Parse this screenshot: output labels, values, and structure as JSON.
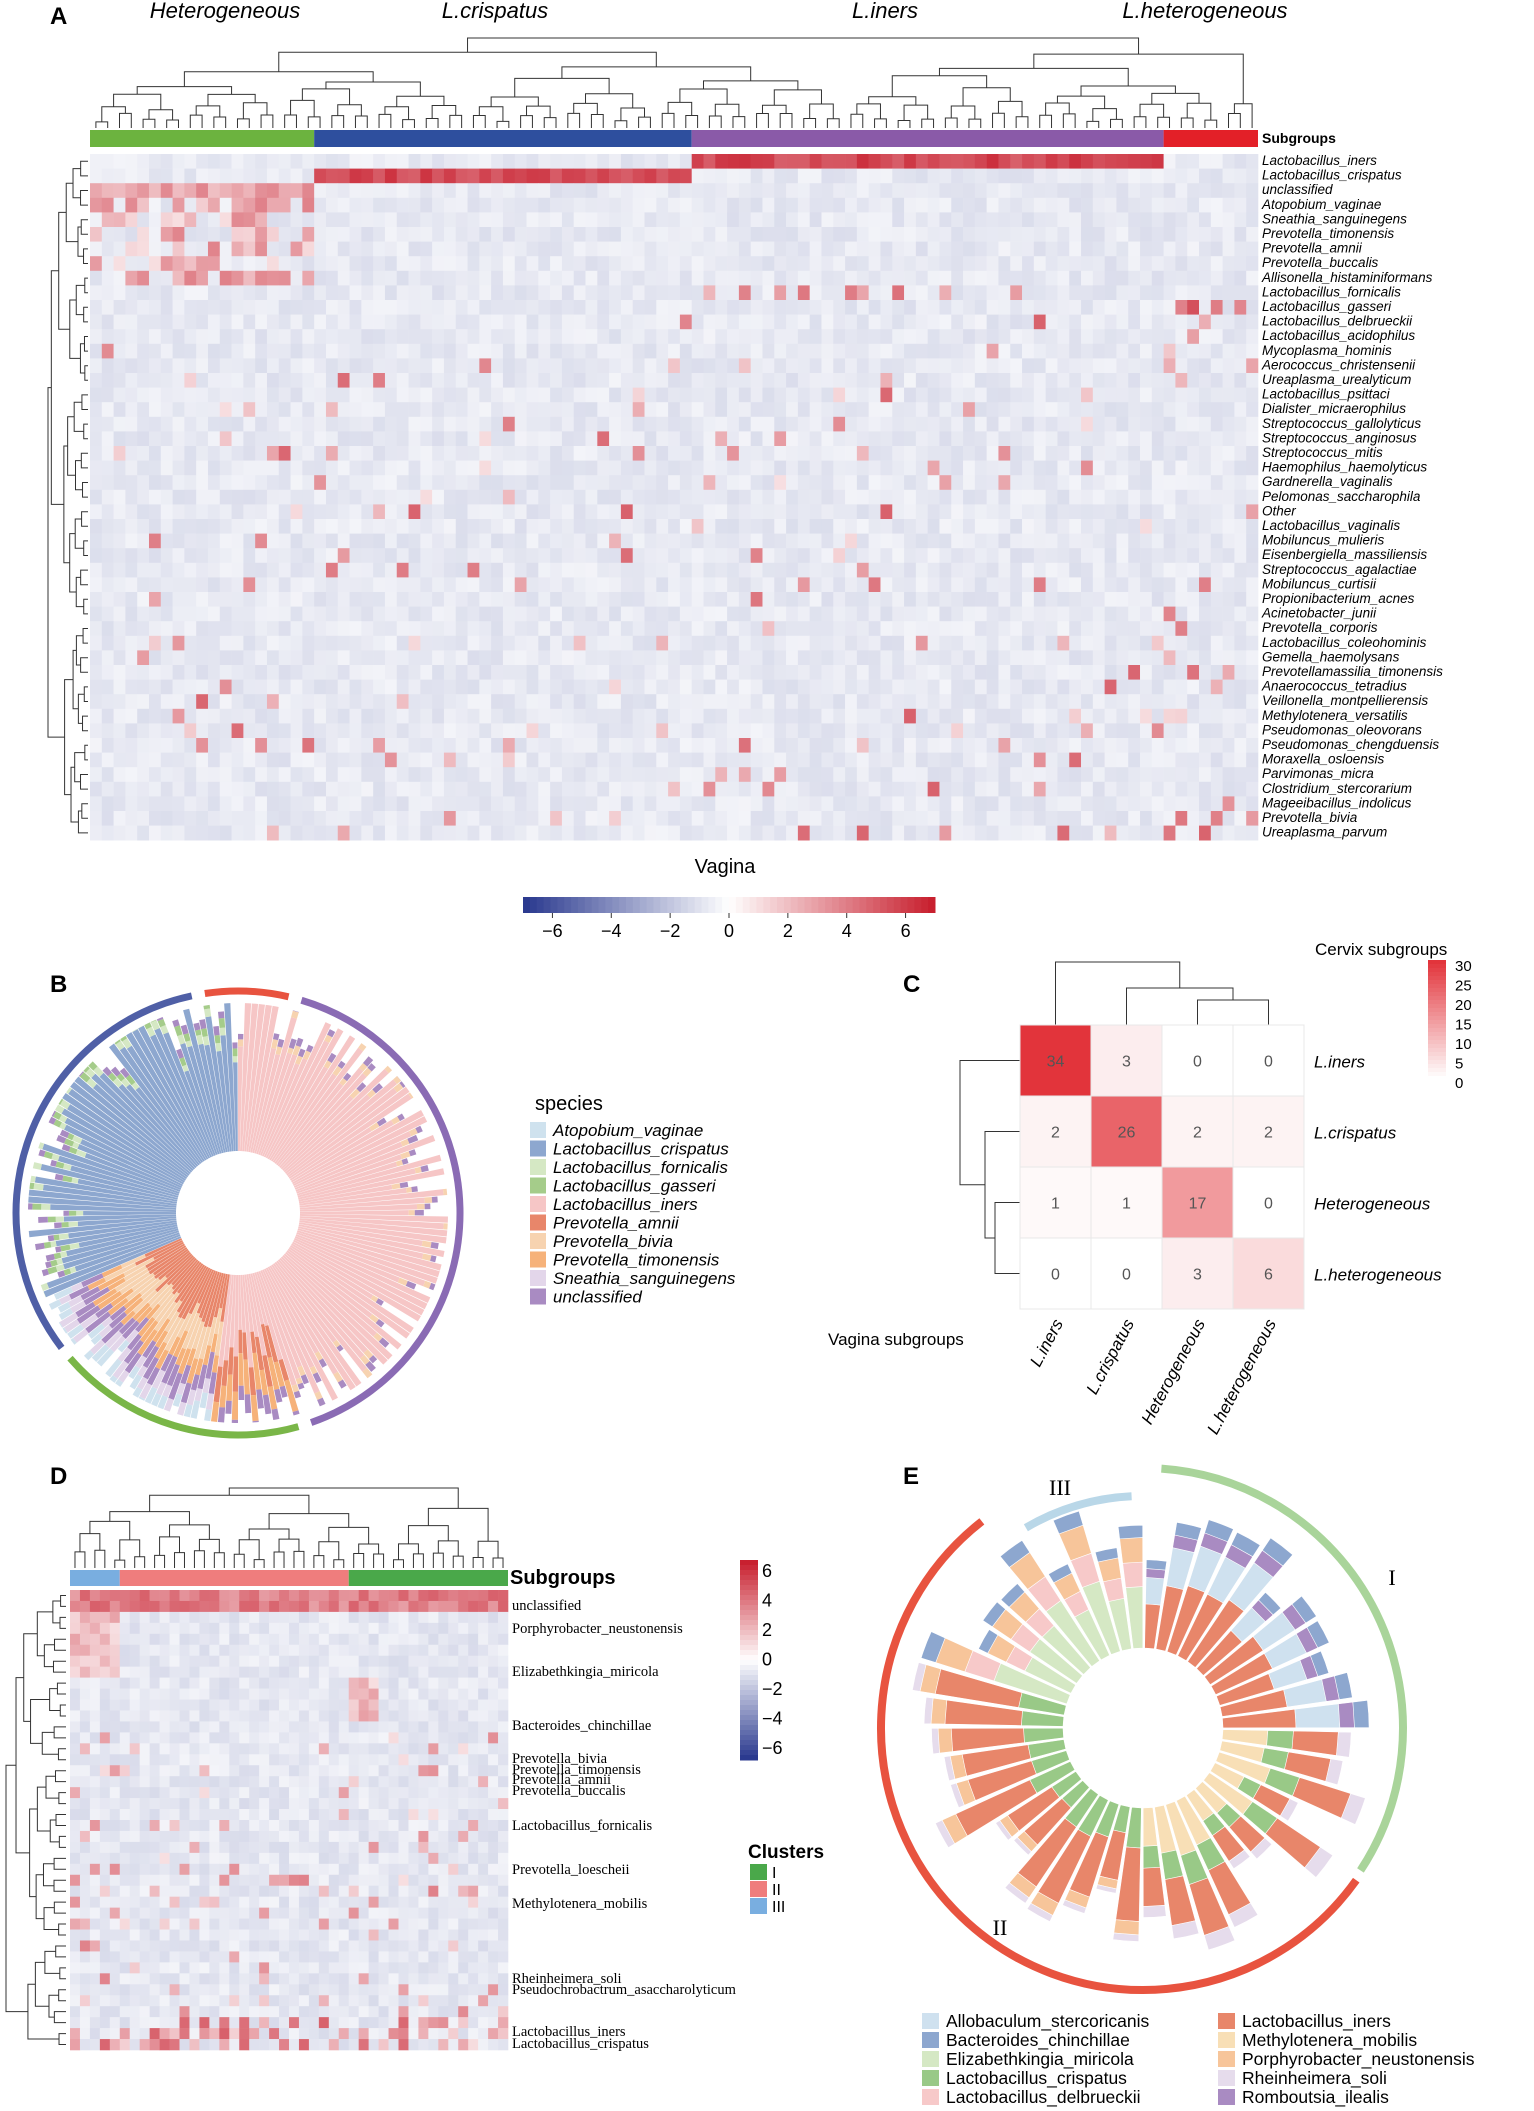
{
  "panel_labels": [
    "A",
    "B",
    "C",
    "D",
    "E"
  ],
  "chart_data": [
    {
      "panel": "A",
      "type": "heatmap",
      "xlabel": "Vagina",
      "subgroup_label": "Subgroups",
      "groups": [
        {
          "name": "Heterogeneous",
          "color": "#6cb33f",
          "n": 19
        },
        {
          "name": "L.crispatus",
          "color": "#2e4f9e",
          "n": 32
        },
        {
          "name": "L.iners",
          "color": "#8a5aa8",
          "n": 40
        },
        {
          "name": "L.heterogeneous",
          "color": "#e32028",
          "n": 8
        }
      ],
      "rows": [
        "Lactobacillus_iners",
        "Lactobacillus_crispatus",
        "unclassified",
        "Atopobium_vaginae",
        "Sneathia_sanguinegens",
        "Prevotella_timonensis",
        "Prevotella_amnii",
        "Prevotella_buccalis",
        "Allisonella_histaminiformans",
        "Lactobacillus_fornicalis",
        "Lactobacillus_gasseri",
        "Lactobacillus_delbrueckii",
        "Lactobacillus_acidophilus",
        "Mycoplasma_hominis",
        "Aerococcus_christensenii",
        "Ureaplasma_urealyticum",
        "Lactobacillus_psittaci",
        "Dialister_micraerophilus",
        "Streptococcus_gallolyticus",
        "Streptococcus_anginosus",
        "Streptococcus_mitis",
        "Haemophilus_haemolyticus",
        "Gardnerella_vaginalis",
        "Pelomonas_saccharophila",
        "Other",
        "Lactobacillus_vaginalis",
        "Mobiluncus_mulieris",
        "Eisenbergiella_massiliensis",
        "Streptococcus_agalactiae",
        "Mobiluncus_curtisii",
        "Propionibacterium_acnes",
        "Acinetobacter_junii",
        "Prevotella_corporis",
        "Lactobacillus_coleohominis",
        "Gemella_haemolysans",
        "Prevotellamassilia_timonensis",
        "Anaerococcus_tetradius",
        "Veillonella_montpellierensis",
        "Methylotenera_versatilis",
        "Pseudomonas_oleovorans",
        "Pseudomonas_chengduensis",
        "Moraxella_osloensis",
        "Parvimonas_micra",
        "Clostridium_stercorarium",
        "Mageeibacillus_indolicus",
        "Prevotella_bivia",
        "Ureaplasma_parvum"
      ],
      "colorbar": {
        "ticks": [
          "−6",
          "−4",
          "−2",
          "0",
          "2",
          "4",
          "6"
        ],
        "low": "#2b3a8f",
        "mid": "#ffffff",
        "high": "#c8202f",
        "range": [
          -7,
          7
        ]
      }
    },
    {
      "panel": "B",
      "type": "circular_bar",
      "legend_title": "species",
      "species": [
        {
          "name": "Atopobium_vaginae",
          "color": "#cfe2ee"
        },
        {
          "name": "Lactobacillus_crispatus",
          "color": "#8da7cf"
        },
        {
          "name": "Lactobacillus_fornicalis",
          "color": "#d5e8c4"
        },
        {
          "name": "Lactobacillus_gasseri",
          "color": "#a5cc8a"
        },
        {
          "name": "Lactobacillus_iners",
          "color": "#f6c6c6"
        },
        {
          "name": "Prevotella_amnii",
          "color": "#e8866a"
        },
        {
          "name": "Prevotella_bivia",
          "color": "#f7d3b0"
        },
        {
          "name": "Prevotella_timonensis",
          "color": "#f6b27a"
        },
        {
          "name": "Sneathia_sanguinegens",
          "color": "#e3d6ea"
        },
        {
          "name": "unclassified",
          "color": "#a98bc2"
        }
      ],
      "outer_ring_groups": [
        {
          "name": "L.heterogeneous",
          "color": "#e8533f",
          "fraction": 0.07
        },
        {
          "name": "L.iners",
          "color": "#8a6bb4",
          "fraction": 0.41
        },
        {
          "name": "Heterogeneous",
          "color": "#7ab648",
          "fraction": 0.19
        },
        {
          "name": "L.crispatus",
          "color": "#4f5fa6",
          "fraction": 0.33
        }
      ]
    },
    {
      "panel": "C",
      "type": "heatmap",
      "title": "Cervix subgroups",
      "xlabel": "Vagina subgroups",
      "row_labels": [
        "L.iners",
        "L.crispatus",
        "Heterogeneous",
        "L.heterogeneous"
      ],
      "col_labels": [
        "L.iners",
        "L.crispatus",
        "Heterogeneous",
        "L.heterogeneous"
      ],
      "values": [
        [
          34,
          3,
          0,
          0
        ],
        [
          2,
          26,
          2,
          2
        ],
        [
          1,
          1,
          17,
          0
        ],
        [
          0,
          0,
          3,
          6
        ]
      ],
      "colorbar": {
        "ticks": [
          "30",
          "25",
          "20",
          "15",
          "10",
          "5",
          "0"
        ],
        "range": [
          0,
          30
        ]
      }
    },
    {
      "panel": "D",
      "type": "heatmap",
      "subgroup_label": "Subgroups",
      "row_labels": [
        "unclassified",
        "Porphyrobacter_neustonensis",
        "Elizabethkingia_miricola",
        "Bacteroides_chinchillae",
        "Prevotella_bivia",
        "Prevotella_timonensis",
        "Prevotella_amnii",
        "Prevotella_buccalis",
        "Lactobacillus_fornicalis",
        "Prevotella_loescheii",
        "Methylotenera_mobilis",
        "Rheinheimera_soli",
        "Pseudochrobactrum_asaccharolyticum",
        "Lactobacillus_iners",
        "Lactobacillus_crispatus"
      ],
      "colorbar": {
        "ticks": [
          "6",
          "4",
          "2",
          "0",
          "−2",
          "−4",
          "−6"
        ],
        "range": [
          -7,
          7
        ]
      },
      "clusters_title": "Clusters",
      "clusters": [
        {
          "name": "I",
          "color": "#4aa84a"
        },
        {
          "name": "II",
          "color": "#ef7d7d"
        },
        {
          "name": "III",
          "color": "#79aee0"
        }
      ]
    },
    {
      "panel": "E",
      "type": "circular_bar",
      "cluster_labels": [
        "III",
        "I",
        "II"
      ],
      "species": [
        {
          "name": "Allobaculum_stercoricanis",
          "color": "#cfe1ef"
        },
        {
          "name": "Lactobacillus_iners",
          "color": "#e8866a"
        },
        {
          "name": "Bacteroides_chinchillae",
          "color": "#8da7cf"
        },
        {
          "name": "Methylotenera_mobilis",
          "color": "#f8dfb6"
        },
        {
          "name": "Elizabethkingia_miricola",
          "color": "#d5e8c4"
        },
        {
          "name": "Porphyrobacter_neustonensis",
          "color": "#f7c59a"
        },
        {
          "name": "Lactobacillus_crispatus",
          "color": "#99c987"
        },
        {
          "name": "Rheinheimera_soli",
          "color": "#e6dcec"
        },
        {
          "name": "Lactobacillus_delbrueckii",
          "color": "#f7c9c9"
        },
        {
          "name": "Romboutsia_ilealis",
          "color": "#a98bc2"
        }
      ]
    }
  ]
}
